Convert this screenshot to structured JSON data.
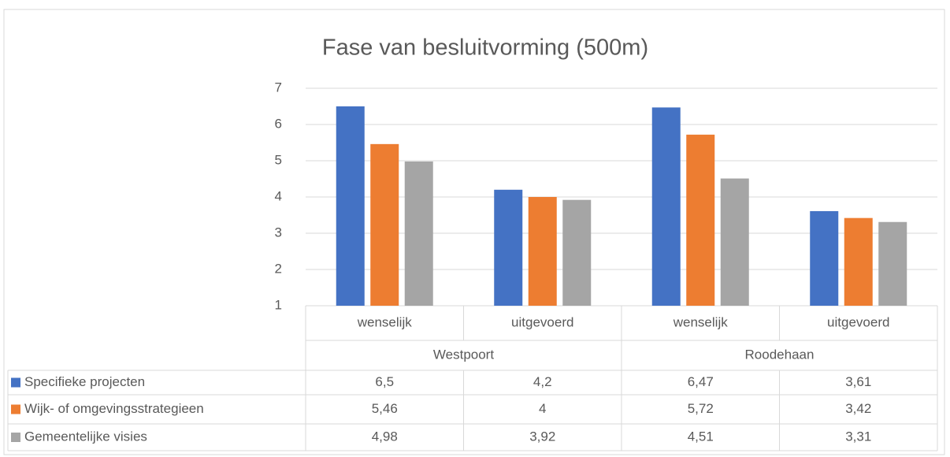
{
  "chart_data": {
    "type": "bar",
    "title": "Fase van besluitvorming (500m)",
    "categories": [
      "wenselijk",
      "uitgevoerd",
      "wenselijk",
      "uitgevoerd"
    ],
    "groups": [
      "Westpoort",
      "Roodehaan"
    ],
    "series": [
      {
        "name": "Specifieke projecten",
        "color": "#4472c4",
        "values": [
          6.5,
          4.2,
          6.47,
          3.61
        ],
        "value_labels": [
          "6,5",
          "4,2",
          "6,47",
          "3,61"
        ]
      },
      {
        "name": "Wijk- of omgevingsstrategieen",
        "color": "#ed7d31",
        "values": [
          5.46,
          4,
          5.72,
          3.42
        ],
        "value_labels": [
          "5,46",
          "4",
          "5,72",
          "3,42"
        ]
      },
      {
        "name": "Gemeentelijke visies",
        "color": "#a5a5a5",
        "values": [
          4.98,
          3.92,
          4.51,
          3.31
        ],
        "value_labels": [
          "4,98",
          "3,92",
          "4,51",
          "3,31"
        ]
      }
    ],
    "ylim": [
      1,
      7
    ],
    "yticks": [
      1,
      2,
      3,
      4,
      5,
      6,
      7
    ],
    "grid": true
  }
}
